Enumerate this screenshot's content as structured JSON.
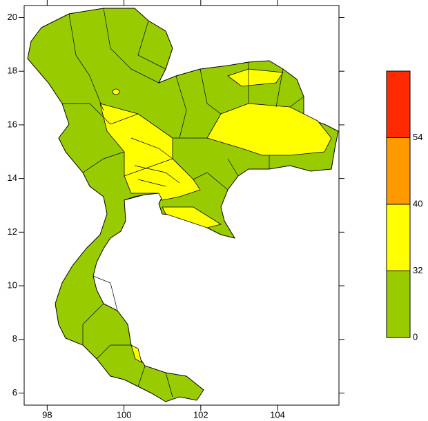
{
  "map": {
    "xlim": [
      97.4,
      105.6
    ],
    "ylim": [
      5.55,
      20.45
    ],
    "xticks": [
      98,
      100,
      102,
      104
    ],
    "yticks": [
      20,
      18,
      16,
      14,
      12,
      10,
      8,
      6
    ]
  },
  "legend": {
    "levels": [
      0,
      32,
      40,
      54
    ],
    "colors": [
      "#99cc00",
      "#ffff00",
      "#ff9900",
      "#ff2a00"
    ]
  }
}
